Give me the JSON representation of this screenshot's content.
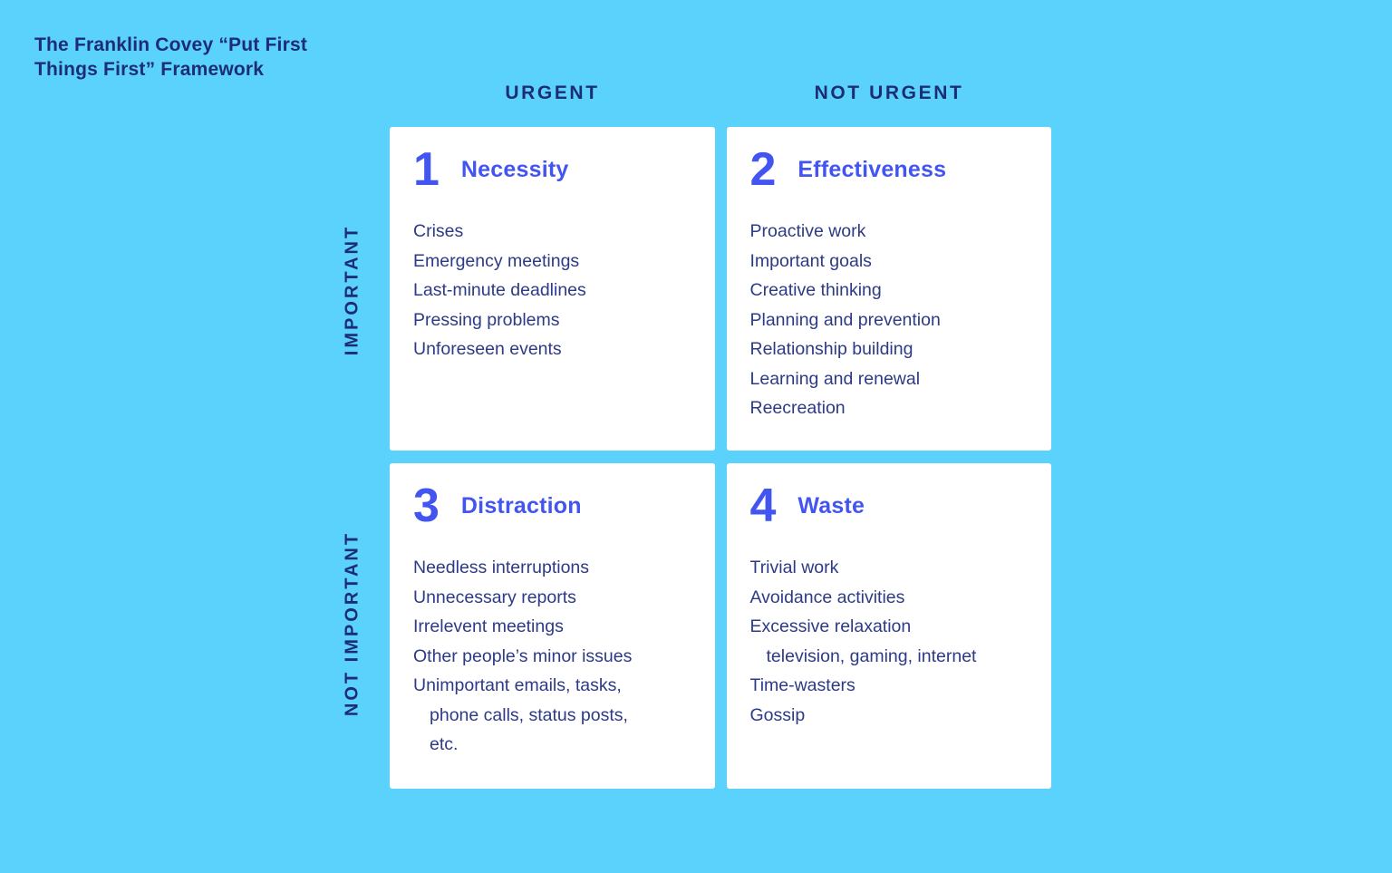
{
  "title": "The Franklin Covey “Put First Things First” Framework",
  "matrix": {
    "column_headers": [
      "URGENT",
      "NOT URGENT"
    ],
    "row_headers": [
      "IMPORTANT",
      "NOT IMPORTANT"
    ]
  },
  "quadrants": [
    {
      "number": "1",
      "name": "Necessity",
      "items": [
        {
          "text": "Crises"
        },
        {
          "text": "Emergency meetings"
        },
        {
          "text": "Last-minute deadlines"
        },
        {
          "text": "Pressing problems"
        },
        {
          "text": "Unforeseen events"
        }
      ]
    },
    {
      "number": "2",
      "name": "Effectiveness",
      "items": [
        {
          "text": "Proactive work"
        },
        {
          "text": "Important goals"
        },
        {
          "text": "Creative thinking"
        },
        {
          "text": "Planning and prevention"
        },
        {
          "text": "Relationship building"
        },
        {
          "text": "Learning and renewal"
        },
        {
          "text": "Reecreation"
        }
      ]
    },
    {
      "number": "3",
      "name": "Distraction",
      "items": [
        {
          "text": "Needless interruptions"
        },
        {
          "text": "Unnecessary reports"
        },
        {
          "text": "Irrelevent meetings"
        },
        {
          "text": "Other people’s minor issues"
        },
        {
          "text": "Unimportant emails, tasks,"
        },
        {
          "text": "phone calls, status posts,",
          "indent": true
        },
        {
          "text": "etc.",
          "indent": true
        }
      ]
    },
    {
      "number": "4",
      "name": "Waste",
      "items": [
        {
          "text": "Trivial work"
        },
        {
          "text": "Avoidance activities"
        },
        {
          "text": "Excessive relaxation"
        },
        {
          "text": "television, gaming, internet",
          "indent": true
        },
        {
          "text": "Time-wasters"
        },
        {
          "text": "Gossip"
        }
      ]
    }
  ],
  "colors": {
    "background": "#5ad2fb",
    "card": "#ffffff",
    "accent_blue": "#4355f0",
    "heading_navy": "#1d2d75",
    "body_navy": "#2d3a85"
  }
}
